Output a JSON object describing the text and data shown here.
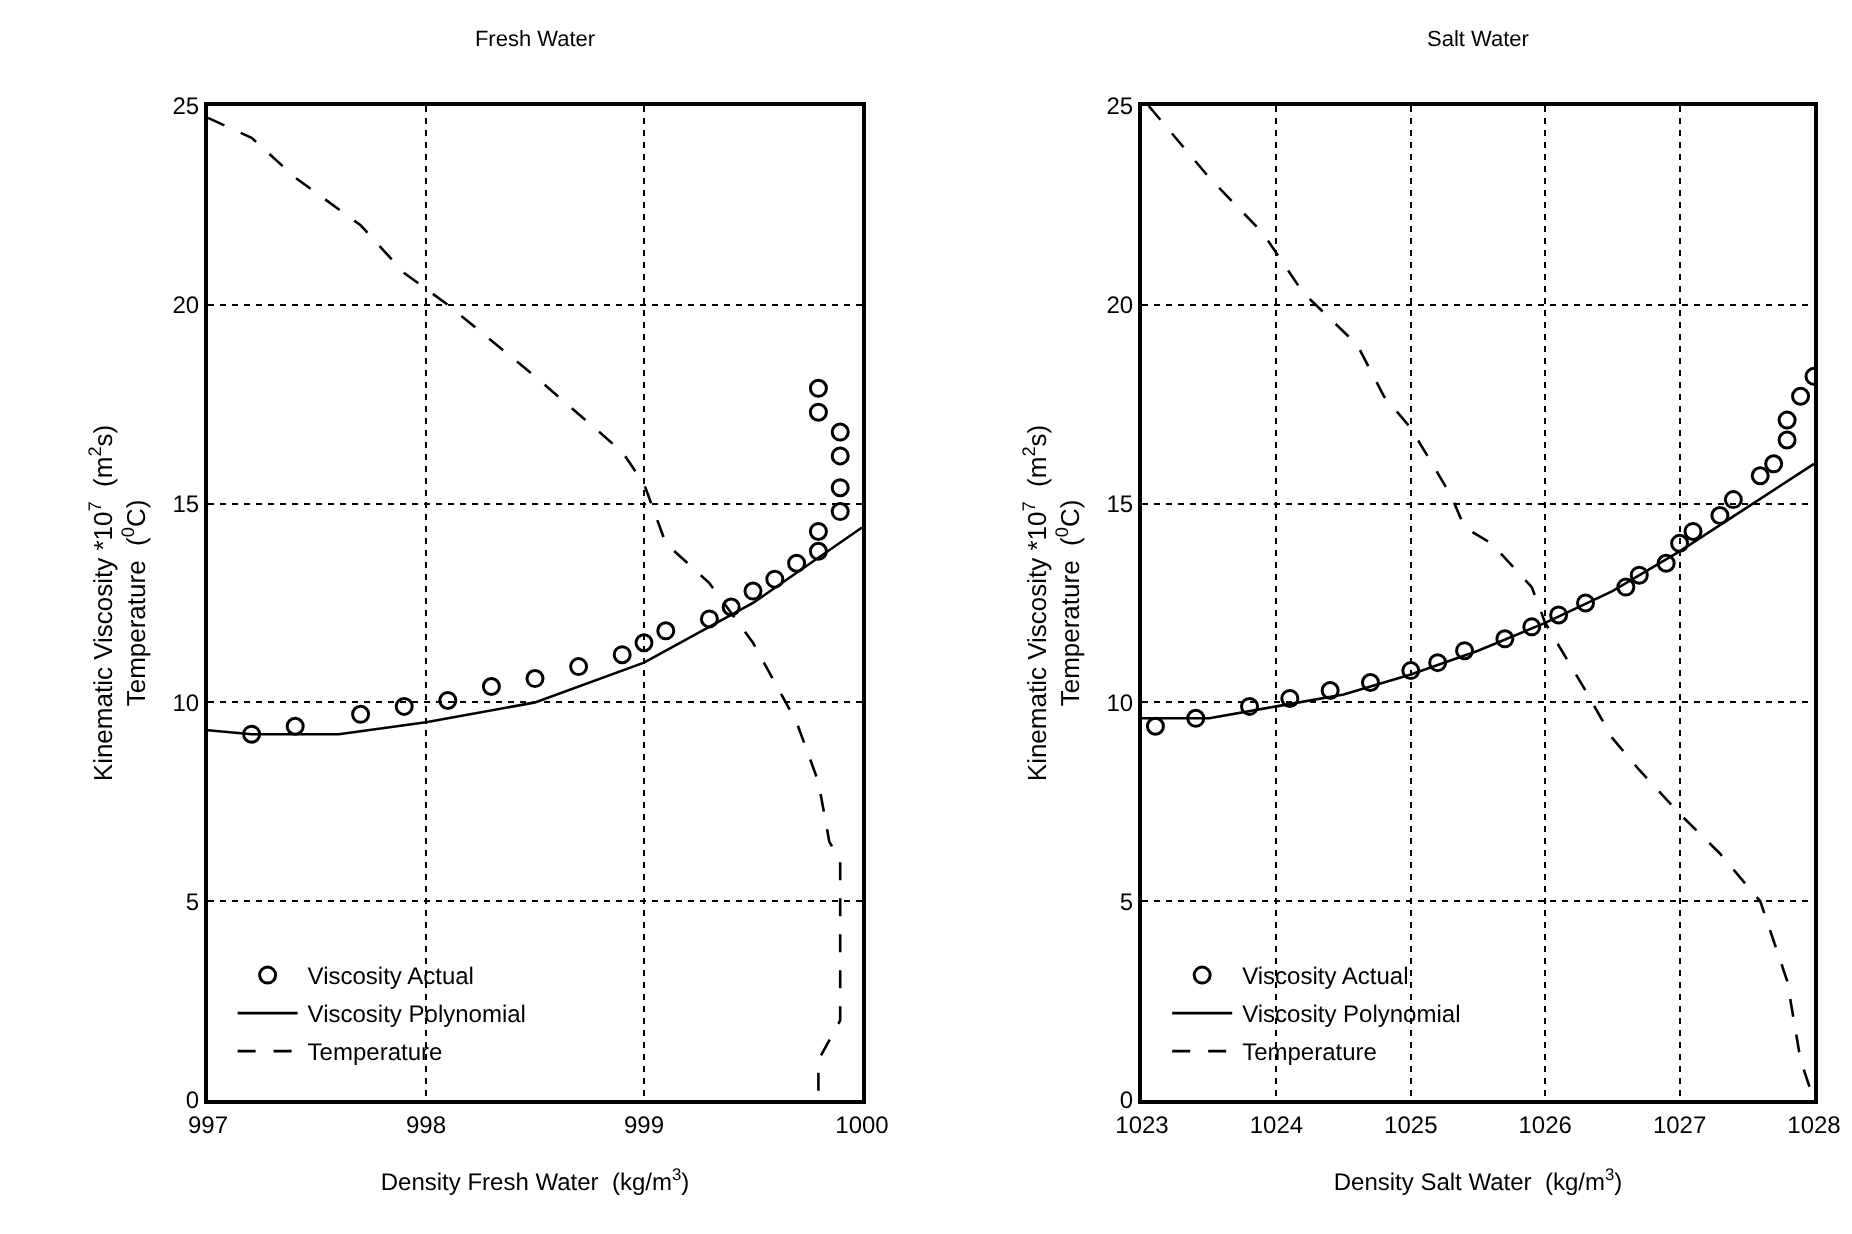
{
  "chart_data": [
    {
      "type": "line",
      "title": "Fresh Water",
      "xlabel": "Density Fresh Water  (kg/m$^{3}$)",
      "ylabel": "Kinematic Viscosity *10$^{7}$  (m$^{2}$s)\nTemperature  ($^{0}$C)",
      "xlim": [
        997,
        1000
      ],
      "xticks": [
        997,
        998,
        999,
        1000
      ],
      "ylim": [
        0,
        25
      ],
      "yticks": [
        0,
        5,
        10,
        15,
        20,
        25
      ],
      "grid": true,
      "legend": "bottom left",
      "series": [
        {
          "name": "Viscosity Actual",
          "type": "scatter",
          "marker": "circle",
          "color": "#000000",
          "x": [
            997.2,
            997.4,
            997.7,
            997.9,
            998.1,
            998.3,
            998.5,
            998.7,
            998.9,
            999.0,
            999.1,
            999.3,
            999.4,
            999.5,
            999.6,
            999.7,
            999.8,
            999.8,
            999.8,
            999.8,
            999.9,
            999.9,
            999.9,
            999.9
          ],
          "values": [
            9.2,
            9.4,
            9.7,
            9.9,
            10.05,
            10.4,
            10.6,
            10.9,
            11.2,
            11.5,
            11.8,
            12.1,
            12.4,
            12.8,
            13.1,
            13.5,
            13.8,
            14.3,
            17.3,
            17.9,
            14.8,
            15.4,
            16.2,
            16.8
          ]
        },
        {
          "name": "Viscosity Polynomial",
          "line_style": "solid",
          "color": "#000000",
          "x": [
            997,
            997.2,
            997.6,
            998,
            998.5,
            999,
            999.5,
            1000
          ],
          "values": [
            9.3,
            9.2,
            9.2,
            9.5,
            10.0,
            11.0,
            12.5,
            14.4
          ]
        },
        {
          "name": "Temperature",
          "line_style": "dashed",
          "color": "#000000",
          "x": [
            997,
            997.2,
            997.4,
            997.7,
            997.9,
            998.1,
            998.5,
            998.9,
            999.0,
            999.1,
            999.3,
            999.5,
            999.7,
            999.8,
            999.85,
            999.9,
            999.9,
            999.8,
            999.8
          ],
          "values": [
            24.7,
            24.2,
            23.2,
            22,
            20.8,
            20.0,
            18.2,
            16.3,
            15.5,
            14,
            13,
            11.5,
            9.5,
            8,
            6.5,
            6,
            2,
            1,
            0
          ]
        }
      ]
    },
    {
      "type": "line",
      "title": "Salt Water",
      "xlabel": "Density Salt Water  (kg/m$^{3}$)",
      "ylabel": "Kinematic Viscosity *10$^{7}$  (m$^{2}$s)\nTemperature  ($^{0}$C)",
      "xlim": [
        1023,
        1028
      ],
      "xticks": [
        1023,
        1024,
        1025,
        1026,
        1027,
        1028
      ],
      "ylim": [
        0,
        25
      ],
      "yticks": [
        0,
        5,
        10,
        15,
        20,
        25
      ],
      "grid": true,
      "legend": "bottom left",
      "series": [
        {
          "name": "Viscosity Actual",
          "type": "scatter",
          "marker": "circle",
          "color": "#000000",
          "x": [
            1023.1,
            1023.4,
            1023.8,
            1024.1,
            1024.4,
            1024.7,
            1025.0,
            1025.2,
            1025.4,
            1025.7,
            1025.9,
            1026.1,
            1026.3,
            1026.6,
            1026.7,
            1026.9,
            1027.0,
            1027.1,
            1027.3,
            1027.4,
            1027.6,
            1027.7,
            1027.8,
            1027.8,
            1027.9,
            1028.0
          ],
          "values": [
            9.4,
            9.6,
            9.9,
            10.1,
            10.3,
            10.5,
            10.8,
            11.0,
            11.3,
            11.6,
            11.9,
            12.2,
            12.5,
            12.9,
            13.2,
            13.5,
            14.0,
            14.3,
            14.7,
            15.1,
            15.7,
            16.0,
            16.6,
            17.1,
            17.7,
            18.2
          ]
        },
        {
          "name": "Viscosity Polynomial",
          "line_style": "solid",
          "color": "#000000",
          "x": [
            1023,
            1023.5,
            1024,
            1024.5,
            1025,
            1025.5,
            1026,
            1026.5,
            1027,
            1027.5,
            1028
          ],
          "values": [
            9.6,
            9.6,
            9.9,
            10.2,
            10.7,
            11.3,
            12.0,
            12.8,
            13.8,
            14.9,
            16.0
          ]
        },
        {
          "name": "Temperature",
          "line_style": "dashed",
          "color": "#000000",
          "x": [
            1023.05,
            1023.3,
            1023.5,
            1023.9,
            1024.2,
            1024.6,
            1024.8,
            1025,
            1025.3,
            1025.4,
            1025.6,
            1025.9,
            1026,
            1026.3,
            1026.5,
            1026.7,
            1027,
            1027.3,
            1027.6,
            1027.8,
            1027.9,
            1028
          ],
          "values": [
            25,
            24,
            23.2,
            21.8,
            20.3,
            19,
            17.7,
            16.9,
            15.2,
            14.4,
            14,
            12.9,
            12,
            10.3,
            9.1,
            8.3,
            7.2,
            6.2,
            5,
            3,
            1,
            0
          ]
        }
      ]
    }
  ]
}
